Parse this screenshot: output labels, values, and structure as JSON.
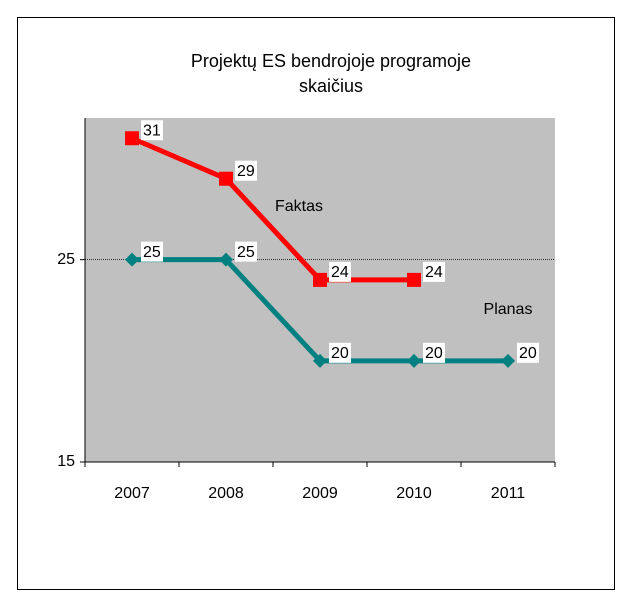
{
  "chart_data": {
    "type": "line",
    "title": "Projektų ES bendrojoje programoje skaičius",
    "categories": [
      "2007",
      "2008",
      "2009",
      "2010",
      "2011"
    ],
    "series": [
      {
        "name": "Faktas",
        "color": "#ff0000",
        "marker": "square",
        "values": [
          31,
          29,
          24,
          24,
          null
        ]
      },
      {
        "name": "Planas",
        "color": "#008080",
        "marker": "diamond",
        "values": [
          25,
          25,
          20,
          20,
          20
        ]
      }
    ],
    "ylim": [
      15,
      32
    ],
    "yticks": [
      15,
      25
    ],
    "grid": true
  }
}
